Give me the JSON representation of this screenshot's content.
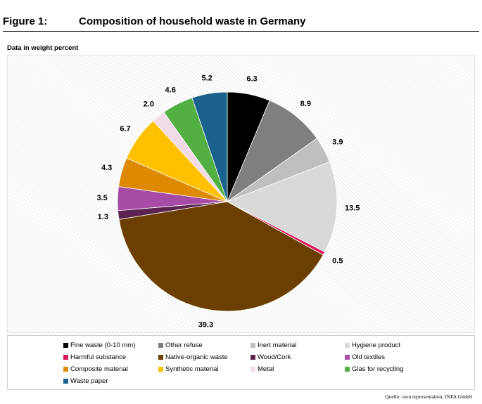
{
  "figure": {
    "number": "Figure 1:",
    "title": "Composition of household waste in Germany",
    "subtitle": "Data in weight percent",
    "source": "Quelle: own representation, INFA GmbH"
  },
  "chart_data": {
    "type": "pie",
    "title": "Composition of household waste in Germany",
    "subtitle": "Data in weight percent",
    "start": "12 o'clock",
    "direction": "clockwise",
    "legend_position": "bottom",
    "slices": [
      {
        "label": "Fine waste (0-10 mm)",
        "value": 6.3,
        "value_label": "6.3",
        "color": "#000000"
      },
      {
        "label": "Other refuse",
        "value": 8.9,
        "value_label": "8.9",
        "color": "#7f7f7f"
      },
      {
        "label": "Inert material",
        "value": 3.9,
        "value_label": "3.9",
        "color": "#bfbfbf"
      },
      {
        "label": "Hygiene product",
        "value": 13.5,
        "value_label": "13.5",
        "color": "#d9d9d9"
      },
      {
        "label": "Harmful substance",
        "value": 0.5,
        "value_label": "0.5",
        "color": "#e0185f"
      },
      {
        "label": "Native-organic waste",
        "value": 39.3,
        "value_label": "39.3",
        "color": "#6b3f00"
      },
      {
        "label": "Wood/Cork",
        "value": 1.3,
        "value_label": "1.3",
        "color": "#5c2350"
      },
      {
        "label": "Old textiles",
        "value": 3.5,
        "value_label": "3.5",
        "color": "#a64ca6"
      },
      {
        "label": "Composite material",
        "value": 4.3,
        "value_label": "4.3",
        "color": "#de8a00"
      },
      {
        "label": "Synthetic material",
        "value": 6.7,
        "value_label": "6.7",
        "color": "#ffc000"
      },
      {
        "label": "Metal",
        "value": 2.0,
        "value_label": "2.0",
        "color": "#f1dbe8"
      },
      {
        "label": "Glas for recycling",
        "value": 4.6,
        "value_label": "4.6",
        "color": "#52b043"
      },
      {
        "label": "Waste paper",
        "value": 5.2,
        "value_label": "5.2",
        "color": "#1a628d"
      }
    ]
  }
}
